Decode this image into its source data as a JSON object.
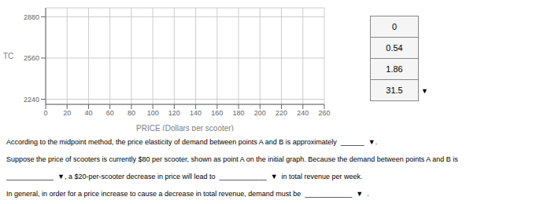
{
  "chart_data": {
    "type": "scatter",
    "xlabel": "PRICE (Dollars per scooter)",
    "ylabel": "TC",
    "xlim": [
      0,
      260
    ],
    "ylim": [
      2200,
      2950
    ],
    "xticks": [
      0,
      20,
      40,
      60,
      80,
      100,
      120,
      140,
      160,
      180,
      200,
      220,
      240,
      260
    ],
    "yticks": [
      2240,
      2560,
      2880
    ],
    "grid": true,
    "series": [],
    "annotations": [
      "0",
      "0.54",
      "1.86",
      "31.5",
      "▼",
      "According to the midpoint method, the price elasticity of demand between points A and B is approximately  ______  ▼.",
      "Suppose the price of scooters is currently $80 per scooter, shown as point A on the initial graph. Because the demand between points A and B is",
      "____________  ▼, a $20-per-scooter decrease in price will lead to  ____________  ▼  in total revenue per week.",
      "In general, in order for a price increase to cause a decrease in total revenue, demand must be  ____________  ▼  ."
    ]
  }
}
